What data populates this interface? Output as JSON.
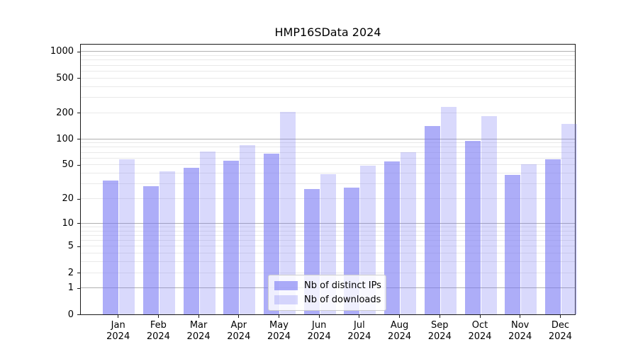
{
  "chart_data": {
    "type": "bar",
    "title": "HMP16SData 2024",
    "categories": [
      "Jan 2024",
      "Feb 2024",
      "Mar 2024",
      "Apr 2024",
      "May 2024",
      "Jun 2024",
      "Jul 2024",
      "Aug 2024",
      "Sep 2024",
      "Oct 2024",
      "Nov 2024",
      "Dec 2024"
    ],
    "series": [
      {
        "name": "Nb of distinct IPs",
        "color": "#7777f3",
        "alpha": 0.6,
        "values": [
          33,
          28,
          46,
          56,
          67,
          26,
          27,
          55,
          140,
          95,
          38,
          58
        ]
      },
      {
        "name": "Nb of downloads",
        "color": "#7777f3",
        "alpha": 0.28,
        "values": [
          58,
          42,
          71,
          85,
          205,
          39,
          49,
          70,
          235,
          183,
          51,
          150
        ]
      }
    ],
    "xlabel": "",
    "ylabel": "",
    "yscale": "log1p",
    "ylim": [
      0,
      1236
    ],
    "y_ticks": [
      0,
      1,
      2,
      5,
      10,
      20,
      50,
      100,
      200,
      500,
      1000
    ],
    "grid": true,
    "grid_decade_lines": [
      1,
      10,
      100,
      1000
    ],
    "grid_minor_lines": [
      2,
      3,
      4,
      5,
      6,
      7,
      8,
      9,
      20,
      30,
      40,
      50,
      60,
      70,
      80,
      90,
      200,
      300,
      400,
      500,
      600,
      700,
      800,
      900
    ],
    "legend_position": "lower center"
  },
  "colors": {
    "decade_grid": "#b0b0b0",
    "minor_grid": "#e9e9e9",
    "axis": "#1a1a1a",
    "legend_border": "#cccccc"
  }
}
